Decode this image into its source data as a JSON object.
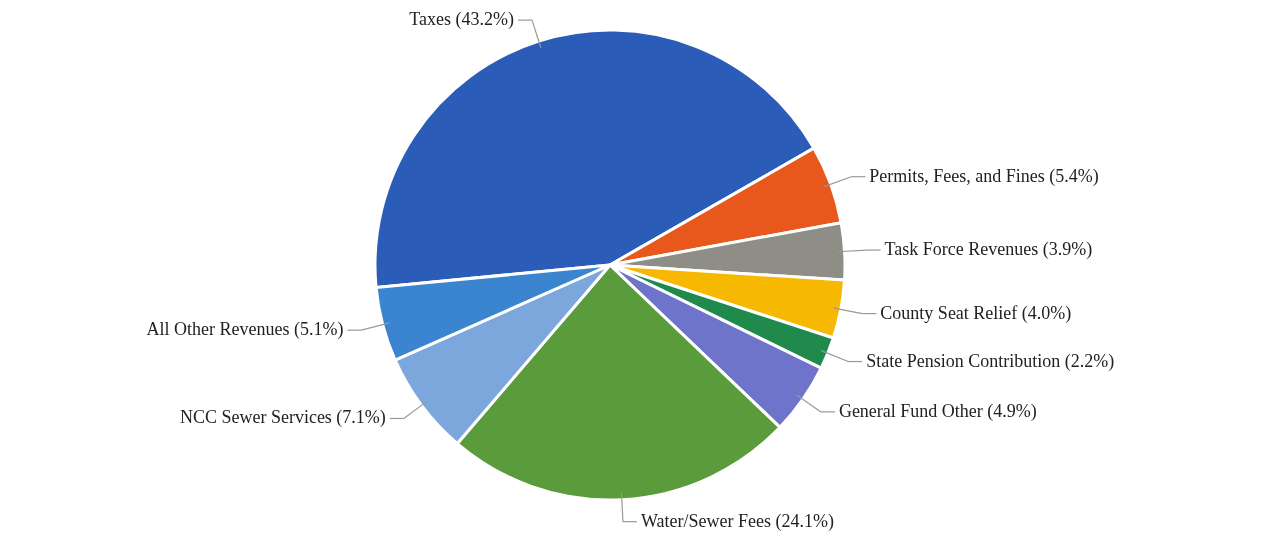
{
  "chart_data": {
    "type": "pie",
    "categories": [
      "Taxes (43.2%)",
      "Permits, Fees, and Fines (5.4%)",
      "Task Force Revenues (3.9%)",
      "County Seat Relief (4.0%)",
      "State Pension Contribution (2.2%)",
      "General Fund Other (4.9%)",
      "Water/Sewer Fees (24.1%)",
      "NCC Sewer Services (7.1%)",
      "All Other Revenues (5.1%)"
    ],
    "values": [
      43.2,
      5.4,
      3.9,
      4.0,
      2.2,
      4.9,
      24.1,
      7.1,
      5.1
    ],
    "colors": [
      "#2b5cb8",
      "#e8581c",
      "#8e8e86",
      "#f6b800",
      "#1f8a4c",
      "#6d74c9",
      "#5a9c3c",
      "#7ba7dd",
      "#3a84d0"
    ]
  }
}
